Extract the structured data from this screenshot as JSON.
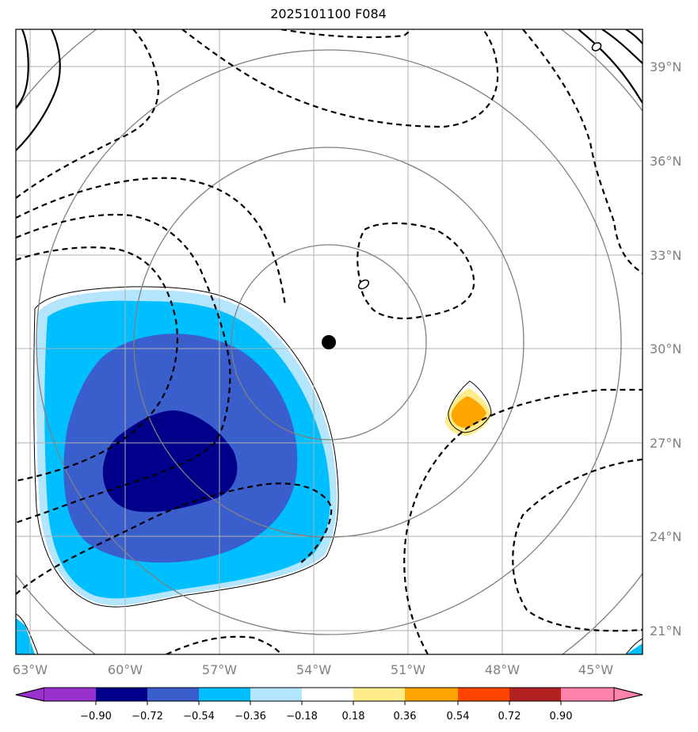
{
  "title": "2025101100 F084",
  "map": {
    "lon_labels": [
      "63°W",
      "60°W",
      "57°W",
      "54°W",
      "51°W",
      "48°W",
      "45°W"
    ],
    "lat_labels": [
      "39°N",
      "36°N",
      "33°N",
      "30°N",
      "27°N",
      "24°N",
      "21°N"
    ],
    "center_marker": "storm-center-dot"
  },
  "colorbar": {
    "ticks": [
      "−0.90",
      "−0.72",
      "−0.54",
      "−0.36",
      "−0.18",
      "0.18",
      "0.36",
      "0.54",
      "0.72",
      "0.90"
    ],
    "colors": [
      "#9932cc",
      "#00008b",
      "#3a5fcd",
      "#00bfff",
      "#b3e5fc",
      "#ffffff",
      "#ffec8b",
      "#ffa500",
      "#ff4500",
      "#b22222",
      "#ff82ab"
    ]
  }
}
